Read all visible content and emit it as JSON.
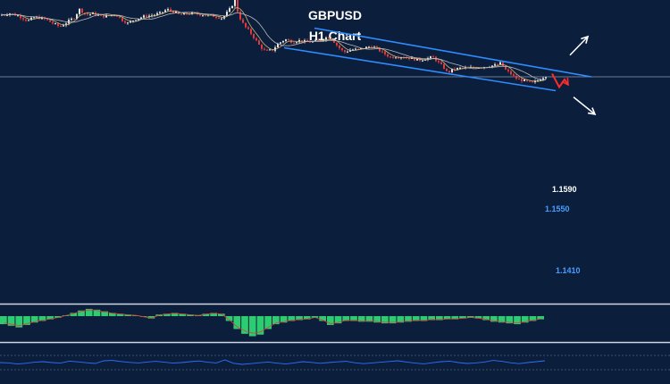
{
  "chart_data": {
    "type": "candlestick",
    "title": "GBPUSD",
    "subtitle": "H1 Chart",
    "levels": [
      {
        "label": "1.1590",
        "value": 1.159,
        "color": "#ffffff"
      },
      {
        "label": "1.1550",
        "value": 1.155,
        "color": "#4a9cff"
      },
      {
        "label": "1.1410",
        "value": 1.141,
        "color": "#4a9cff"
      }
    ],
    "price_points": [
      {
        "x": 0,
        "y": 1.1745
      },
      {
        "x": 10,
        "y": 1.1752
      },
      {
        "x": 20,
        "y": 1.1741
      },
      {
        "x": 30,
        "y": 1.1718
      },
      {
        "x": 38,
        "y": 1.1736
      },
      {
        "x": 48,
        "y": 1.1728
      },
      {
        "x": 58,
        "y": 1.1708
      },
      {
        "x": 66,
        "y": 1.1692
      },
      {
        "x": 74,
        "y": 1.1712
      },
      {
        "x": 82,
        "y": 1.1734
      },
      {
        "x": 88,
        "y": 1.177
      },
      {
        "x": 96,
        "y": 1.1746
      },
      {
        "x": 104,
        "y": 1.1752
      },
      {
        "x": 112,
        "y": 1.1738
      },
      {
        "x": 120,
        "y": 1.1741
      },
      {
        "x": 128,
        "y": 1.1748
      },
      {
        "x": 136,
        "y": 1.1722
      },
      {
        "x": 142,
        "y": 1.1708
      },
      {
        "x": 150,
        "y": 1.1726
      },
      {
        "x": 160,
        "y": 1.1738
      },
      {
        "x": 170,
        "y": 1.1744
      },
      {
        "x": 178,
        "y": 1.1752
      },
      {
        "x": 186,
        "y": 1.177
      },
      {
        "x": 194,
        "y": 1.1758
      },
      {
        "x": 200,
        "y": 1.1745
      },
      {
        "x": 210,
        "y": 1.1752
      },
      {
        "x": 220,
        "y": 1.1749
      },
      {
        "x": 230,
        "y": 1.1744
      },
      {
        "x": 240,
        "y": 1.1739
      },
      {
        "x": 248,
        "y": 1.173
      },
      {
        "x": 256,
        "y": 1.177
      },
      {
        "x": 262,
        "y": 1.181
      },
      {
        "x": 266,
        "y": 1.1745
      },
      {
        "x": 272,
        "y": 1.1698
      },
      {
        "x": 278,
        "y": 1.1672
      },
      {
        "x": 284,
        "y": 1.164
      },
      {
        "x": 290,
        "y": 1.1605
      },
      {
        "x": 296,
        "y": 1.1582
      },
      {
        "x": 304,
        "y": 1.1588
      },
      {
        "x": 310,
        "y": 1.1615
      },
      {
        "x": 318,
        "y": 1.1636
      },
      {
        "x": 326,
        "y": 1.1625
      },
      {
        "x": 334,
        "y": 1.163
      },
      {
        "x": 342,
        "y": 1.1624
      },
      {
        "x": 350,
        "y": 1.1626
      },
      {
        "x": 358,
        "y": 1.1632
      },
      {
        "x": 366,
        "y": 1.1648
      },
      {
        "x": 372,
        "y": 1.163
      },
      {
        "x": 378,
        "y": 1.16
      },
      {
        "x": 384,
        "y": 1.1578
      },
      {
        "x": 392,
        "y": 1.159
      },
      {
        "x": 400,
        "y": 1.159
      },
      {
        "x": 408,
        "y": 1.1598
      },
      {
        "x": 414,
        "y": 1.1604
      },
      {
        "x": 420,
        "y": 1.1596
      },
      {
        "x": 428,
        "y": 1.1574
      },
      {
        "x": 436,
        "y": 1.1556
      },
      {
        "x": 444,
        "y": 1.156
      },
      {
        "x": 452,
        "y": 1.1556
      },
      {
        "x": 460,
        "y": 1.155
      },
      {
        "x": 468,
        "y": 1.1542
      },
      {
        "x": 476,
        "y": 1.155
      },
      {
        "x": 484,
        "y": 1.1556
      },
      {
        "x": 490,
        "y": 1.153
      },
      {
        "x": 496,
        "y": 1.1508
      },
      {
        "x": 500,
        "y": 1.1485
      },
      {
        "x": 506,
        "y": 1.1502
      },
      {
        "x": 514,
        "y": 1.1506
      },
      {
        "x": 522,
        "y": 1.1508
      },
      {
        "x": 530,
        "y": 1.151
      },
      {
        "x": 538,
        "y": 1.1512
      },
      {
        "x": 546,
        "y": 1.1516
      },
      {
        "x": 554,
        "y": 1.152
      },
      {
        "x": 560,
        "y": 1.153
      },
      {
        "x": 564,
        "y": 1.1502
      },
      {
        "x": 570,
        "y": 1.1484
      },
      {
        "x": 576,
        "y": 1.1462
      },
      {
        "x": 582,
        "y": 1.1454
      },
      {
        "x": 588,
        "y": 1.1448
      },
      {
        "x": 594,
        "y": 1.1438
      },
      {
        "x": 600,
        "y": 1.145
      },
      {
        "x": 606,
        "y": 1.1464
      },
      {
        "x": 610,
        "y": 1.1472
      }
    ],
    "channel": {
      "upper": [
        {
          "x": 352,
          "y": 1.1686
        },
        {
          "x": 662,
          "y": 1.1468
        }
      ],
      "lower": [
        {
          "x": 318,
          "y": 1.1598
        },
        {
          "x": 622,
          "y": 1.1406
        }
      ],
      "color": "#2f8cff"
    },
    "horizontal_line": {
      "y": 1.1468,
      "color": "#8a9cb3"
    },
    "projection_arrows": [
      {
        "from": {
          "x": 638,
          "y": 1.1565
        },
        "to": {
          "x": 658,
          "y": 1.1648
        },
        "color": "#ffffff"
      },
      {
        "from": {
          "x": 642,
          "y": 1.1377
        },
        "to": {
          "x": 666,
          "y": 1.13
        },
        "color": "#ffffff"
      }
    ],
    "zigzag": {
      "points": [
        {
          "x": 618,
          "y": 1.1482
        },
        {
          "x": 626,
          "y": 1.1422
        },
        {
          "x": 632,
          "y": 1.1456
        },
        {
          "x": 636,
          "y": 1.1432
        }
      ],
      "color": "#ff2b2b"
    },
    "histogram": {
      "zero_level": 0,
      "values": [
        -1.0,
        -1.2,
        -1.4,
        -1.1,
        -0.8,
        -0.6,
        -0.4,
        -0.2,
        0.1,
        0.4,
        0.7,
        0.9,
        0.8,
        0.6,
        0.4,
        0.3,
        0.2,
        0.1,
        -0.1,
        -0.3,
        0.2,
        0.3,
        0.4,
        0.3,
        0.2,
        0.1,
        0.3,
        0.4,
        0.3,
        -0.6,
        -1.6,
        -2.2,
        -2.5,
        -2.3,
        -1.6,
        -1.0,
        -0.8,
        -0.6,
        -0.5,
        -0.4,
        -0.2,
        -0.6,
        -1.1,
        -0.9,
        -0.6,
        -0.6,
        -0.7,
        -0.7,
        -0.8,
        -0.9,
        -0.9,
        -0.8,
        -0.7,
        -0.6,
        -0.6,
        -0.5,
        -0.5,
        -0.4,
        -0.4,
        -0.3,
        -0.2,
        -0.3,
        -0.5,
        -0.7,
        -0.8,
        -0.9,
        -1.0,
        -0.8,
        -0.6,
        -0.4
      ],
      "color": "#2ecc71"
    },
    "oscillator": {
      "values": [
        0.5,
        0.48,
        0.42,
        0.46,
        0.52,
        0.55,
        0.5,
        0.47,
        0.58,
        0.54,
        0.49,
        0.45,
        0.6,
        0.62,
        0.56,
        0.51,
        0.48,
        0.53,
        0.57,
        0.52,
        0.47,
        0.5,
        0.55,
        0.59,
        0.52,
        0.48,
        0.65,
        0.46,
        0.4,
        0.44,
        0.49,
        0.53,
        0.47,
        0.42,
        0.48,
        0.55,
        0.51,
        0.46,
        0.5,
        0.54,
        0.57,
        0.49,
        0.44,
        0.48,
        0.52,
        0.56,
        0.6,
        0.53,
        0.47,
        0.43,
        0.49,
        0.55,
        0.58,
        0.5,
        0.45,
        0.48,
        0.53,
        0.62,
        0.57,
        0.49,
        0.44,
        0.5,
        0.55,
        0.6
      ],
      "color": "#2f6fff"
    },
    "colors": {
      "background": "#0b1f3d",
      "bull": "#e6e6e6",
      "bear": "#e23a3a",
      "ma_fast": "#c9b37a",
      "ma_slow": "#b9b9b9",
      "separator": "#cfd6e0"
    },
    "grid": false
  }
}
